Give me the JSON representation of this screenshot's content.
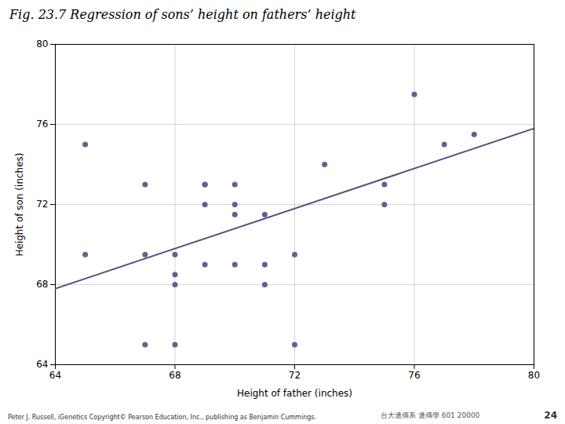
{
  "chart_data": {
    "type": "scatter",
    "title": "Fig. 23.7  Regression of sons’ height on fathers’ height",
    "x_label": "Height of father (inches)",
    "y_label": "Height of son (inches)",
    "xlim": [
      64,
      80
    ],
    "ylim": [
      64,
      80
    ],
    "xticks": [
      64,
      68,
      72,
      76,
      80
    ],
    "yticks": [
      64,
      68,
      72,
      76,
      80
    ],
    "grid": true,
    "series": [
      {
        "type": "scatter",
        "color": "#6b5b8e",
        "marker": "circle",
        "x": [
          65,
          65,
          67,
          67,
          67,
          68,
          68,
          68,
          68,
          69,
          69,
          69,
          69,
          70,
          70,
          70,
          70,
          71,
          71,
          71,
          72,
          72,
          73,
          75,
          75,
          76,
          77,
          78
        ],
        "values": [
          75.0,
          69.5,
          73.0,
          69.5,
          65.0,
          69.5,
          68.5,
          68.0,
          65.0,
          73.0,
          73.0,
          72.0,
          69.0,
          73.0,
          72.0,
          71.5,
          69.0,
          71.5,
          69.0,
          68.0,
          69.5,
          65.0,
          74.0,
          73.0,
          72.0,
          77.5,
          75.0,
          75.5
        ]
      },
      {
        "type": "line",
        "color": "#5a4a7a",
        "line_style": "solid",
        "x": [
          64,
          80
        ],
        "values": [
          67.8,
          75.8
        ]
      }
    ],
    "annotations": [
      "Peter J. Russell, iGenetics Copyright© Pearson Education, Inc., publishing as Benjamin Cummings.",
      "台大遺傳系 遺傳學 601 20000",
      "24"
    ]
  }
}
